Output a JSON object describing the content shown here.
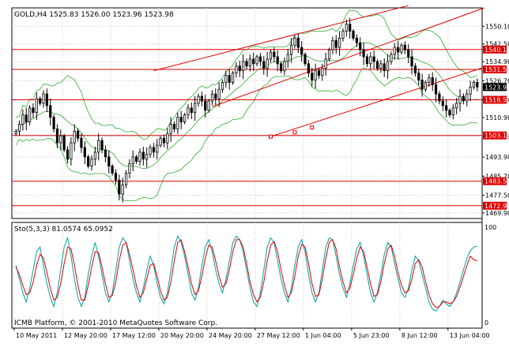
{
  "window": {
    "symbol_line": "GOLD,H4  1525.83 1526.00 1523.96 1523.98",
    "stoch_line": "Sto(5,3,3) 81.0574 65.0952",
    "copyright": "ICMB Platform, © 2001-2010 MetaQuotes Software Corp."
  },
  "chart_data": [
    {
      "type": "candlestick",
      "title": "GOLD,H4",
      "ohlc_header": {
        "open": 1525.83,
        "high": 1526.0,
        "low": 1523.96,
        "close": 1523.98
      },
      "ylim": [
        1467.5,
        1558.0
      ],
      "price_ticks": [
        "1550.10",
        "1542.50",
        "1534.90",
        "1526.70",
        "1518.50",
        "1510.90",
        "1502.70",
        "1493.90",
        "1485.70",
        "1477.50",
        "1469.90"
      ],
      "price_tick_values": [
        1550.1,
        1542.5,
        1534.9,
        1526.7,
        1518.5,
        1510.9,
        1502.7,
        1493.9,
        1485.7,
        1477.5,
        1469.9
      ],
      "time_ticks": [
        "10 May 2011",
        "12 May 20:00",
        "17 May 12:00",
        "20 May 20:00",
        "24 May 20:00",
        "27 May 12:00",
        "1 Jun 04:00",
        "5 Jun 23:00",
        "8 Jun 12:00",
        "13 Jun 04:00"
      ],
      "time_tick_bars": [
        0,
        14,
        28,
        42,
        56,
        70,
        84,
        98,
        112,
        126
      ],
      "bar_count": 135,
      "closes": [
        1505,
        1508,
        1512,
        1509,
        1515,
        1513,
        1519,
        1517,
        1521,
        1516,
        1511,
        1506,
        1500,
        1503,
        1497,
        1493,
        1500,
        1505,
        1502,
        1498,
        1494,
        1490,
        1493,
        1496,
        1501,
        1497,
        1494,
        1490,
        1487,
        1484,
        1478,
        1482,
        1487,
        1491,
        1494,
        1492,
        1496,
        1493,
        1495,
        1498,
        1496,
        1499,
        1502,
        1500,
        1504,
        1508,
        1506,
        1511,
        1509,
        1512,
        1515,
        1513,
        1517,
        1520,
        1518,
        1514,
        1518,
        1521,
        1519,
        1523,
        1526,
        1529,
        1526,
        1530,
        1533,
        1531,
        1535,
        1533,
        1536,
        1534,
        1537,
        1535,
        1532,
        1536,
        1539,
        1537,
        1534,
        1531,
        1535,
        1538,
        1542,
        1545,
        1541,
        1538,
        1534,
        1530,
        1527,
        1531,
        1529,
        1532,
        1536,
        1540,
        1544,
        1541,
        1545,
        1548,
        1551,
        1548,
        1545,
        1543,
        1540,
        1537,
        1534,
        1537,
        1535,
        1532,
        1534,
        1531,
        1535,
        1538,
        1541,
        1539,
        1542,
        1540,
        1537,
        1533,
        1530,
        1527,
        1523,
        1526,
        1528,
        1525,
        1521,
        1518,
        1516,
        1514,
        1512,
        1515,
        1517,
        1520,
        1518,
        1521,
        1524,
        1526,
        1524
      ],
      "horizontal_lines": [
        {
          "label": "1540.10",
          "value": 1540.1
        },
        {
          "label": "1531.55",
          "value": 1531.55
        },
        {
          "label": "1518.50",
          "value": 1518.5
        },
        {
          "label": "1503.18",
          "value": 1503.18
        },
        {
          "label": "1483.53",
          "value": 1483.53
        },
        {
          "label": "1472.99",
          "value": 1472.99
        }
      ],
      "current_price_label": "1523.98",
      "current_price_value": 1523.98,
      "trendlines": [
        {
          "x1": 40,
          "y1": 1531.0,
          "x2": 114,
          "y2": 1559.0
        },
        {
          "x1": 57,
          "y1": 1515.5,
          "x2": 136,
          "y2": 1558.0
        },
        {
          "x1": 74,
          "y1": 1502.7,
          "x2": 136,
          "y2": 1532.5
        }
      ],
      "trendline_markers": [
        {
          "x": 74,
          "y": 1502.7
        },
        {
          "x": 81,
          "y": 1504.5
        },
        {
          "x": 86,
          "y": 1506.6
        }
      ],
      "colors": {
        "bull": "#000000",
        "bear": "#000000",
        "hline": "#e00000",
        "trendline": "#e00000",
        "bands": "#33aa33"
      }
    },
    {
      "type": "line",
      "title": "Sto(5,3,3)",
      "main_value": 81.0574,
      "signal_value": 65.0952,
      "ylim": [
        0,
        100
      ],
      "ticks": [
        "100",
        "0"
      ],
      "series": [
        {
          "name": "main",
          "color": "#00a0a0",
          "values": [
            60,
            45,
            30,
            20,
            35,
            55,
            75,
            80,
            60,
            40,
            25,
            15,
            30,
            55,
            80,
            90,
            70,
            45,
            25,
            15,
            25,
            50,
            70,
            85,
            70,
            50,
            30,
            20,
            30,
            55,
            80,
            90,
            85,
            65,
            45,
            30,
            20,
            35,
            55,
            70,
            60,
            40,
            25,
            18,
            30,
            55,
            80,
            92,
            85,
            70,
            50,
            30,
            22,
            35,
            60,
            80,
            88,
            75,
            55,
            40,
            30,
            45,
            65,
            85,
            92,
            88,
            75,
            55,
            35,
            20,
            15,
            30,
            55,
            80,
            90,
            85,
            65,
            45,
            30,
            20,
            35,
            60,
            80,
            88,
            75,
            50,
            30,
            20,
            30,
            55,
            80,
            90,
            88,
            70,
            50,
            35,
            25,
            40,
            60,
            78,
            85,
            70,
            50,
            30,
            20,
            30,
            50,
            72,
            85,
            80,
            62,
            45,
            30,
            25,
            35,
            55,
            70,
            65,
            50,
            35,
            20,
            12,
            10,
            15,
            22,
            18,
            15,
            20,
            30,
            42,
            55,
            68,
            76,
            80,
            81
          ]
        },
        {
          "name": "signal",
          "color": "#e00000",
          "values": [
            58,
            50,
            38,
            28,
            30,
            42,
            60,
            72,
            68,
            52,
            35,
            22,
            25,
            40,
            62,
            80,
            78,
            60,
            38,
            22,
            22,
            38,
            58,
            75,
            74,
            58,
            40,
            25,
            27,
            42,
            65,
            82,
            85,
            72,
            55,
            38,
            25,
            30,
            45,
            60,
            62,
            48,
            32,
            22,
            25,
            42,
            65,
            85,
            88,
            75,
            58,
            40,
            28,
            32,
            48,
            68,
            82,
            80,
            65,
            48,
            36,
            40,
            55,
            75,
            88,
            88,
            80,
            62,
            42,
            28,
            20,
            25,
            42,
            65,
            82,
            86,
            75,
            55,
            38,
            25,
            30,
            48,
            70,
            83,
            80,
            62,
            40,
            26,
            28,
            45,
            68,
            85,
            88,
            78,
            58,
            42,
            30,
            35,
            50,
            68,
            80,
            75,
            58,
            40,
            26,
            28,
            42,
            62,
            78,
            82,
            70,
            52,
            38,
            30,
            32,
            45,
            62,
            66,
            58,
            42,
            28,
            18,
            14,
            15,
            20,
            20,
            18,
            20,
            26,
            36,
            48,
            60,
            70,
            66,
            65
          ]
        }
      ]
    }
  ]
}
